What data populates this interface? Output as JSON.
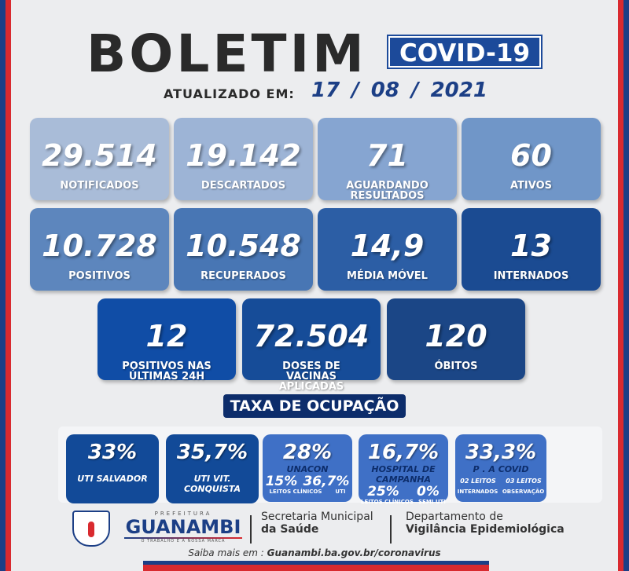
{
  "header": {
    "title": "BOLETIM",
    "badge": "COVID-19",
    "updated_label": "ATUALIZADO EM:",
    "date": "17 / 08 / 2021"
  },
  "cards": [
    {
      "value": "29.514",
      "label": "NOTIFICADOS",
      "color": "#a9bcd8"
    },
    {
      "value": "19.142",
      "label": "DESCARTADOS",
      "color": "#9db4d6"
    },
    {
      "value": "71",
      "label": "AGUARDANDO RESULTADOS",
      "color": "#86a5d1"
    },
    {
      "value": "60",
      "label": "ATIVOS",
      "color": "#7096c8"
    },
    {
      "value": "10.728",
      "label": "POSITIVOS",
      "color": "#5d86bd"
    },
    {
      "value": "10.548",
      "label": "RECUPERADOS",
      "color": "#4876b4"
    },
    {
      "value": "14,9",
      "label": "MÉDIA MÓVEL",
      "color": "#2c5ea5"
    },
    {
      "value": "13",
      "label": "INTERNADOS",
      "color": "#1b4b92"
    },
    {
      "value": "12",
      "label": "POSITIVOS NAS ÚLTIMAS 24H",
      "color": "#104da6"
    },
    {
      "value": "72.504",
      "label": "DOSES DE VACINAS APLICADAS",
      "color": "#164c98"
    },
    {
      "value": "120",
      "label": "ÓBITOS",
      "color": "#1b4686"
    }
  ],
  "occupancy": {
    "title": "TAXA DE OCUPAÇÃO",
    "items": [
      {
        "value": "33%",
        "label": "UTI SALVADOR",
        "color": "#124a98"
      },
      {
        "value": "35,7%",
        "label": "UTI VIT. CONQUISTA",
        "color": "#124a98"
      },
      {
        "value": "28%",
        "label": "UNACON",
        "color": "#3f70c6",
        "sub": [
          "15%",
          "36,7%"
        ],
        "tiny": [
          "LEITOS CLÍNICOS",
          "UTI"
        ]
      },
      {
        "value": "16,7%",
        "label": "HOSPITAL DE CAMPANHA",
        "color": "#3f70c6",
        "sub": [
          "25%",
          "0%"
        ],
        "tiny": [
          "LEITOS CLÍNICOS",
          "SEMI UTI"
        ]
      },
      {
        "value": "33,3%",
        "label": "P . A COVID",
        "color": "#3f70c6",
        "sub": [
          "02 LEITOS",
          "03 LEITOS"
        ],
        "tiny": [
          "INTERNADOS",
          "OBSERVAÇÃO"
        ]
      }
    ]
  },
  "footer": {
    "prefeitura": "PREFEITURA",
    "city": "GUANAMBI",
    "motto": "O TRABALHO É A NOSSA MARCA",
    "sec1": "Secretaria Municipal",
    "sec2": "da Saúde",
    "dep1": "Departamento de",
    "dep2": "Vigilância Epidemiológica",
    "more_label": "Saiba mais em : ",
    "url": "Guanambi.ba.gov.br/coronavirus"
  }
}
